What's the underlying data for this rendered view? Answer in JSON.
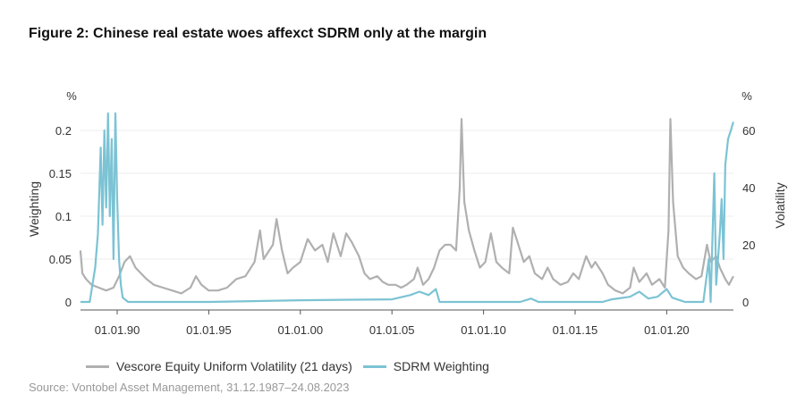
{
  "title": "Figure 2: Chinese real estate woes affexct SDRM only at the margin",
  "source": "Source: Vontobel Asset Management, 31.12.1987–24.08.2023",
  "chart_data": {
    "type": "line",
    "title": "Figure 2: Chinese real estate woes affexct SDRM only at the margin",
    "x_ticks": [
      "01.01.90",
      "01.01.95",
      "01.01.00",
      "01.01.05",
      "01.01.10",
      "01.01.15",
      "01.01.20"
    ],
    "x_range": [
      "1987-12-31",
      "2023-08-24"
    ],
    "y_left": {
      "label": "Weighting",
      "unit": "%",
      "ticks": [
        "0",
        "0.05",
        "0.1",
        "0.15",
        "0.2"
      ],
      "range": [
        0,
        0.2
      ]
    },
    "y_right": {
      "label": "Volatility",
      "unit": "%",
      "ticks": [
        "0",
        "20",
        "40",
        "60"
      ],
      "range": [
        0,
        60
      ]
    },
    "legend_position": "bottom-left",
    "grid": true,
    "series": [
      {
        "name": "Vescore Equity Uniform Volatility (21 days)",
        "axis": "right",
        "color": "#b0b0b0",
        "points": [
          [
            1987.99,
            18
          ],
          [
            1988.1,
            10
          ],
          [
            1988.3,
            8
          ],
          [
            1988.6,
            6
          ],
          [
            1989.0,
            5
          ],
          [
            1989.4,
            4
          ],
          [
            1989.8,
            5
          ],
          [
            1990.1,
            9
          ],
          [
            1990.4,
            14
          ],
          [
            1990.7,
            16
          ],
          [
            1991.0,
            12
          ],
          [
            1991.3,
            10
          ],
          [
            1991.6,
            8
          ],
          [
            1992.0,
            6
          ],
          [
            1992.5,
            5
          ],
          [
            1993.0,
            4
          ],
          [
            1993.5,
            3
          ],
          [
            1994.0,
            5
          ],
          [
            1994.3,
            9
          ],
          [
            1994.6,
            6
          ],
          [
            1995.0,
            4
          ],
          [
            1995.5,
            4
          ],
          [
            1996.0,
            5
          ],
          [
            1996.5,
            8
          ],
          [
            1997.0,
            9
          ],
          [
            1997.5,
            14
          ],
          [
            1997.8,
            25
          ],
          [
            1998.0,
            15
          ],
          [
            1998.5,
            20
          ],
          [
            1998.7,
            29
          ],
          [
            1999.0,
            18
          ],
          [
            1999.3,
            10
          ],
          [
            1999.6,
            12
          ],
          [
            2000.0,
            14
          ],
          [
            2000.4,
            22
          ],
          [
            2000.8,
            18
          ],
          [
            2001.2,
            20
          ],
          [
            2001.5,
            14
          ],
          [
            2001.8,
            24
          ],
          [
            2002.2,
            16
          ],
          [
            2002.5,
            24
          ],
          [
            2002.8,
            21
          ],
          [
            2003.2,
            16
          ],
          [
            2003.5,
            10
          ],
          [
            2003.8,
            8
          ],
          [
            2004.2,
            9
          ],
          [
            2004.5,
            7
          ],
          [
            2004.8,
            6
          ],
          [
            2005.2,
            6
          ],
          [
            2005.5,
            5
          ],
          [
            2005.8,
            6
          ],
          [
            2006.2,
            8
          ],
          [
            2006.4,
            12
          ],
          [
            2006.7,
            6
          ],
          [
            2007.0,
            8
          ],
          [
            2007.3,
            12
          ],
          [
            2007.6,
            18
          ],
          [
            2007.9,
            20
          ],
          [
            2008.2,
            20
          ],
          [
            2008.5,
            18
          ],
          [
            2008.7,
            40
          ],
          [
            2008.8,
            64
          ],
          [
            2008.95,
            35
          ],
          [
            2009.2,
            25
          ],
          [
            2009.5,
            18
          ],
          [
            2009.8,
            12
          ],
          [
            2010.1,
            14
          ],
          [
            2010.4,
            24
          ],
          [
            2010.7,
            14
          ],
          [
            2011.0,
            12
          ],
          [
            2011.4,
            10
          ],
          [
            2011.6,
            26
          ],
          [
            2011.8,
            22
          ],
          [
            2012.2,
            14
          ],
          [
            2012.5,
            16
          ],
          [
            2012.8,
            10
          ],
          [
            2013.2,
            8
          ],
          [
            2013.5,
            12
          ],
          [
            2013.8,
            8
          ],
          [
            2014.2,
            6
          ],
          [
            2014.6,
            7
          ],
          [
            2014.9,
            10
          ],
          [
            2015.2,
            8
          ],
          [
            2015.6,
            16
          ],
          [
            2015.9,
            12
          ],
          [
            2016.1,
            14
          ],
          [
            2016.5,
            10
          ],
          [
            2016.8,
            6
          ],
          [
            2017.2,
            4
          ],
          [
            2017.6,
            3
          ],
          [
            2018.0,
            5
          ],
          [
            2018.2,
            12
          ],
          [
            2018.5,
            7
          ],
          [
            2018.9,
            10
          ],
          [
            2019.2,
            6
          ],
          [
            2019.6,
            8
          ],
          [
            2019.9,
            5
          ],
          [
            2020.1,
            25
          ],
          [
            2020.2,
            64
          ],
          [
            2020.35,
            35
          ],
          [
            2020.6,
            16
          ],
          [
            2020.9,
            12
          ],
          [
            2021.2,
            10
          ],
          [
            2021.6,
            8
          ],
          [
            2021.9,
            9
          ],
          [
            2022.2,
            20
          ],
          [
            2022.4,
            14
          ],
          [
            2022.7,
            16
          ],
          [
            2022.9,
            12
          ],
          [
            2023.2,
            8
          ],
          [
            2023.4,
            6
          ],
          [
            2023.64,
            9
          ]
        ]
      },
      {
        "name": "SDRM Weighting",
        "axis": "left",
        "color": "#7cc3d4",
        "points": [
          [
            1987.99,
            0.0
          ],
          [
            1988.5,
            0.0
          ],
          [
            1988.8,
            0.04
          ],
          [
            1988.95,
            0.08
          ],
          [
            1989.1,
            0.18
          ],
          [
            1989.2,
            0.09
          ],
          [
            1989.3,
            0.2
          ],
          [
            1989.4,
            0.11
          ],
          [
            1989.5,
            0.22
          ],
          [
            1989.6,
            0.1
          ],
          [
            1989.7,
            0.19
          ],
          [
            1989.8,
            0.05
          ],
          [
            1989.9,
            0.22
          ],
          [
            1990.0,
            0.12
          ],
          [
            1990.1,
            0.05
          ],
          [
            1990.2,
            0.02
          ],
          [
            1990.3,
            0.005
          ],
          [
            1990.6,
            0.0
          ],
          [
            1995.0,
            0.0
          ],
          [
            2000.0,
            0.002
          ],
          [
            2005.0,
            0.003
          ],
          [
            2006.0,
            0.008
          ],
          [
            2006.5,
            0.012
          ],
          [
            2007.0,
            0.008
          ],
          [
            2007.4,
            0.015
          ],
          [
            2007.6,
            0.0
          ],
          [
            2012.0,
            0.0
          ],
          [
            2012.6,
            0.004
          ],
          [
            2013.0,
            0.0
          ],
          [
            2016.5,
            0.0
          ],
          [
            2017.0,
            0.003
          ],
          [
            2018.0,
            0.006
          ],
          [
            2018.5,
            0.012
          ],
          [
            2019.0,
            0.004
          ],
          [
            2019.5,
            0.006
          ],
          [
            2020.0,
            0.015
          ],
          [
            2020.3,
            0.005
          ],
          [
            2021.0,
            0.0
          ],
          [
            2022.0,
            0.0
          ],
          [
            2022.3,
            0.05
          ],
          [
            2022.4,
            0.0
          ],
          [
            2022.6,
            0.15
          ],
          [
            2022.7,
            0.02
          ],
          [
            2022.9,
            0.08
          ],
          [
            2023.0,
            0.12
          ],
          [
            2023.1,
            0.05
          ],
          [
            2023.2,
            0.16
          ],
          [
            2023.35,
            0.19
          ],
          [
            2023.5,
            0.2
          ],
          [
            2023.64,
            0.21
          ]
        ]
      }
    ]
  },
  "legend": {
    "items": [
      {
        "label": "Vescore Equity Uniform Volatility (21 days)",
        "color": "#b0b0b0"
      },
      {
        "label": "SDRM Weighting",
        "color": "#7cc3d4"
      }
    ]
  }
}
